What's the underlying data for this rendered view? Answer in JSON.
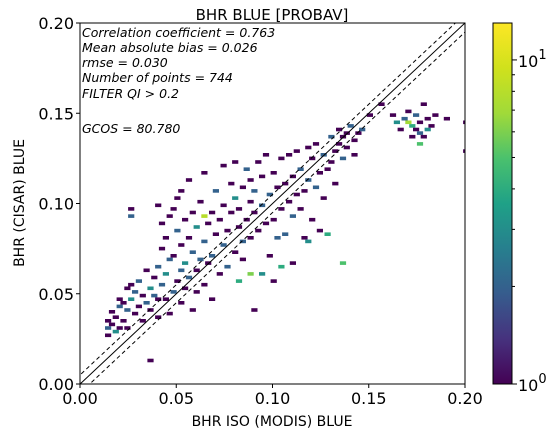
{
  "chart_data": {
    "type": "heatmap",
    "title": "BHR BLUE [PROBAV]",
    "xlabel": "BHR ISO (MODIS) BLUE",
    "ylabel": "BHR (CISAR) BLUE",
    "xlim": [
      0.0,
      0.2
    ],
    "ylim": [
      0.0,
      0.2
    ],
    "xticks": [
      "0.00",
      "0.05",
      "0.10",
      "0.15",
      "0.20"
    ],
    "yticks": [
      "0.00",
      "0.05",
      "0.10",
      "0.15",
      "0.20"
    ],
    "annotations": [
      "Correlation coefficient = 0.763",
      "Mean absolute bias = 0.026",
      "rmse = 0.030",
      "Number of points = 744",
      "FILTER QI > 0.2",
      "GCOS = 80.780"
    ],
    "reference_lines": {
      "identity": {
        "style": "solid",
        "slope": 1,
        "intercept": 0
      },
      "upper_band": {
        "style": "dashed",
        "slope": 1,
        "intercept": 0.005
      },
      "lower_band": {
        "style": "dashed",
        "slope": 1,
        "intercept": -0.005
      }
    },
    "colorbar": {
      "scale": "log",
      "range": [
        1,
        13
      ],
      "colormap": "viridis",
      "tick_labels": [
        {
          "base": "10",
          "exp": "0",
          "value": 1
        },
        {
          "base": "10",
          "exp": "1",
          "value": 10
        }
      ]
    },
    "bin_size": 0.002,
    "cells": [
      [
        0.014,
        0.027,
        1
      ],
      [
        0.014,
        0.031,
        2
      ],
      [
        0.014,
        0.035,
        1
      ],
      [
        0.016,
        0.033,
        1
      ],
      [
        0.016,
        0.04,
        1
      ],
      [
        0.018,
        0.029,
        3
      ],
      [
        0.018,
        0.037,
        1
      ],
      [
        0.02,
        0.031,
        1
      ],
      [
        0.02,
        0.043,
        2
      ],
      [
        0.02,
        0.047,
        1
      ],
      [
        0.022,
        0.035,
        1
      ],
      [
        0.022,
        0.045,
        1
      ],
      [
        0.024,
        0.041,
        2
      ],
      [
        0.024,
        0.053,
        1
      ],
      [
        0.024,
        0.031,
        1
      ],
      [
        0.026,
        0.047,
        3
      ],
      [
        0.026,
        0.055,
        1
      ],
      [
        0.026,
        0.097,
        1
      ],
      [
        0.026,
        0.093,
        2
      ],
      [
        0.028,
        0.039,
        1
      ],
      [
        0.028,
        0.051,
        2
      ],
      [
        0.03,
        0.043,
        1
      ],
      [
        0.03,
        0.057,
        2
      ],
      [
        0.032,
        0.035,
        1
      ],
      [
        0.032,
        0.049,
        1
      ],
      [
        0.034,
        0.045,
        2
      ],
      [
        0.034,
        0.063,
        1
      ],
      [
        0.036,
        0.041,
        1
      ],
      [
        0.036,
        0.053,
        3
      ],
      [
        0.036,
        0.013,
        1
      ],
      [
        0.038,
        0.049,
        2
      ],
      [
        0.038,
        0.059,
        1
      ],
      [
        0.04,
        0.037,
        1
      ],
      [
        0.04,
        0.047,
        1
      ],
      [
        0.04,
        0.065,
        2
      ],
      [
        0.04,
        0.099,
        1
      ],
      [
        0.042,
        0.055,
        2
      ],
      [
        0.042,
        0.075,
        1
      ],
      [
        0.042,
        0.089,
        1
      ],
      [
        0.044,
        0.047,
        1
      ],
      [
        0.044,
        0.061,
        3
      ],
      [
        0.044,
        0.081,
        1
      ],
      [
        0.046,
        0.039,
        1
      ],
      [
        0.046,
        0.069,
        2
      ],
      [
        0.046,
        0.093,
        1
      ],
      [
        0.048,
        0.051,
        2
      ],
      [
        0.048,
        0.071,
        1
      ],
      [
        0.048,
        0.097,
        1
      ],
      [
        0.05,
        0.057,
        1
      ],
      [
        0.05,
        0.085,
        2
      ],
      [
        0.05,
        0.103,
        1
      ],
      [
        0.052,
        0.045,
        1
      ],
      [
        0.052,
        0.063,
        2
      ],
      [
        0.052,
        0.077,
        1
      ],
      [
        0.052,
        0.107,
        1
      ],
      [
        0.054,
        0.053,
        1
      ],
      [
        0.054,
        0.067,
        3
      ],
      [
        0.054,
        0.091,
        1
      ],
      [
        0.056,
        0.059,
        2
      ],
      [
        0.056,
        0.081,
        1
      ],
      [
        0.056,
        0.113,
        1
      ],
      [
        0.058,
        0.041,
        1
      ],
      [
        0.058,
        0.073,
        2
      ],
      [
        0.058,
        0.095,
        1
      ],
      [
        0.06,
        0.063,
        1
      ],
      [
        0.06,
        0.087,
        3
      ],
      [
        0.06,
        0.051,
        1
      ],
      [
        0.062,
        0.069,
        2
      ],
      [
        0.062,
        0.101,
        1
      ],
      [
        0.064,
        0.055,
        1
      ],
      [
        0.064,
        0.079,
        2
      ],
      [
        0.064,
        0.117,
        1
      ],
      [
        0.066,
        0.089,
        1
      ],
      [
        0.066,
        0.067,
        1
      ],
      [
        0.068,
        0.071,
        2
      ],
      [
        0.068,
        0.095,
        1
      ],
      [
        0.068,
        0.047,
        1
      ],
      [
        0.07,
        0.083,
        1
      ],
      [
        0.07,
        0.107,
        2
      ],
      [
        0.072,
        0.061,
        1
      ],
      [
        0.072,
        0.091,
        1
      ],
      [
        0.074,
        0.077,
        2
      ],
      [
        0.074,
        0.121,
        1
      ],
      [
        0.074,
        0.099,
        1
      ],
      [
        0.076,
        0.085,
        1
      ],
      [
        0.076,
        0.065,
        2
      ],
      [
        0.078,
        0.095,
        1
      ],
      [
        0.078,
        0.111,
        1
      ],
      [
        0.08,
        0.073,
        1
      ],
      [
        0.08,
        0.103,
        3
      ],
      [
        0.08,
        0.123,
        1
      ],
      [
        0.082,
        0.087,
        1
      ],
      [
        0.082,
        0.097,
        1
      ],
      [
        0.084,
        0.079,
        2
      ],
      [
        0.084,
        0.109,
        1
      ],
      [
        0.084,
        0.069,
        1
      ],
      [
        0.086,
        0.091,
        1
      ],
      [
        0.086,
        0.119,
        2
      ],
      [
        0.088,
        0.101,
        1
      ],
      [
        0.088,
        0.081,
        1
      ],
      [
        0.088,
        0.113,
        1
      ],
      [
        0.09,
        0.107,
        2
      ],
      [
        0.09,
        0.095,
        1
      ],
      [
        0.09,
        0.041,
        1
      ],
      [
        0.092,
        0.123,
        1
      ],
      [
        0.092,
        0.085,
        1
      ],
      [
        0.094,
        0.115,
        1
      ],
      [
        0.094,
        0.099,
        2
      ],
      [
        0.094,
        0.061,
        3
      ],
      [
        0.096,
        0.089,
        1
      ],
      [
        0.096,
        0.127,
        1
      ],
      [
        0.098,
        0.071,
        1
      ],
      [
        0.098,
        0.105,
        2
      ],
      [
        0.1,
        0.117,
        1
      ],
      [
        0.1,
        0.091,
        1
      ],
      [
        0.1,
        0.057,
        1
      ],
      [
        0.102,
        0.081,
        2
      ],
      [
        0.102,
        0.109,
        1
      ],
      [
        0.104,
        0.125,
        1
      ],
      [
        0.104,
        0.097,
        1
      ],
      [
        0.104,
        0.065,
        4
      ],
      [
        0.106,
        0.111,
        1
      ],
      [
        0.106,
        0.083,
        2
      ],
      [
        0.108,
        0.101,
        1
      ],
      [
        0.108,
        0.127,
        1
      ],
      [
        0.11,
        0.093,
        2
      ],
      [
        0.11,
        0.115,
        1
      ],
      [
        0.11,
        0.067,
        1
      ],
      [
        0.112,
        0.105,
        1
      ],
      [
        0.112,
        0.129,
        1
      ],
      [
        0.114,
        0.097,
        1
      ],
      [
        0.114,
        0.119,
        2
      ],
      [
        0.116,
        0.081,
        1
      ],
      [
        0.116,
        0.107,
        1
      ],
      [
        0.118,
        0.113,
        2
      ],
      [
        0.118,
        0.131,
        1
      ],
      [
        0.118,
        0.079,
        3
      ],
      [
        0.12,
        0.091,
        1
      ],
      [
        0.12,
        0.125,
        1
      ],
      [
        0.122,
        0.109,
        2
      ],
      [
        0.122,
        0.133,
        1
      ],
      [
        0.124,
        0.117,
        1
      ],
      [
        0.124,
        0.085,
        1
      ],
      [
        0.126,
        0.127,
        2
      ],
      [
        0.126,
        0.103,
        1
      ],
      [
        0.128,
        0.119,
        1
      ],
      [
        0.128,
        0.083,
        4
      ],
      [
        0.13,
        0.123,
        1
      ],
      [
        0.13,
        0.137,
        2
      ],
      [
        0.132,
        0.129,
        1
      ],
      [
        0.132,
        0.111,
        1
      ],
      [
        0.134,
        0.133,
        1
      ],
      [
        0.134,
        0.141,
        1
      ],
      [
        0.136,
        0.125,
        2
      ],
      [
        0.136,
        0.137,
        1
      ],
      [
        0.138,
        0.139,
        1
      ],
      [
        0.138,
        0.131,
        1
      ],
      [
        0.14,
        0.143,
        2
      ],
      [
        0.142,
        0.135,
        1
      ],
      [
        0.142,
        0.127,
        1
      ],
      [
        0.144,
        0.139,
        1
      ],
      [
        0.146,
        0.141,
        2
      ],
      [
        0.15,
        0.149,
        1
      ],
      [
        0.156,
        0.155,
        1
      ],
      [
        0.162,
        0.149,
        1
      ],
      [
        0.164,
        0.145,
        3
      ],
      [
        0.166,
        0.141,
        1
      ],
      [
        0.168,
        0.147,
        2
      ],
      [
        0.17,
        0.151,
        1
      ],
      [
        0.172,
        0.143,
        4
      ],
      [
        0.172,
        0.137,
        1
      ],
      [
        0.174,
        0.149,
        2
      ],
      [
        0.174,
        0.141,
        1
      ],
      [
        0.176,
        0.145,
        1
      ],
      [
        0.176,
        0.139,
        2
      ],
      [
        0.178,
        0.155,
        1
      ],
      [
        0.178,
        0.137,
        1
      ],
      [
        0.18,
        0.141,
        3
      ],
      [
        0.18,
        0.147,
        1
      ],
      [
        0.182,
        0.143,
        1
      ],
      [
        0.184,
        0.149,
        1
      ],
      [
        0.19,
        0.147,
        1
      ],
      [
        0.2,
        0.145,
        1
      ],
      [
        0.2,
        0.129,
        1
      ],
      [
        0.176,
        0.133,
        5
      ],
      [
        0.17,
        0.145,
        7
      ],
      [
        0.088,
        0.061,
        6
      ],
      [
        0.136,
        0.067,
        5
      ],
      [
        0.064,
        0.093,
        8
      ],
      [
        0.082,
        0.057,
        4
      ]
    ]
  }
}
